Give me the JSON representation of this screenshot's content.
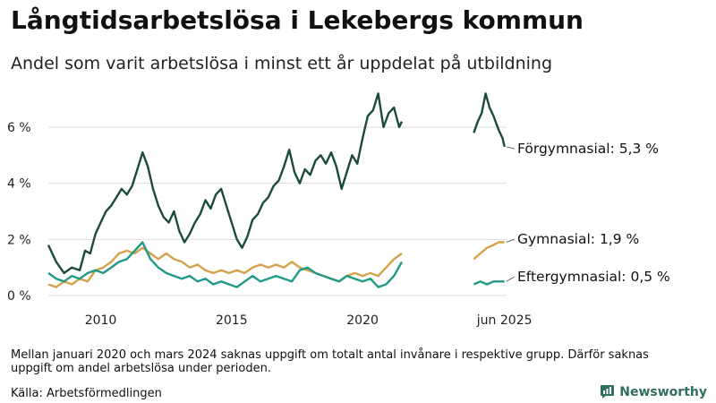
{
  "header": {
    "title": "Långtidsarbetslösa i Lekebergs kommun",
    "subtitle": "Andel som varit arbetslösa i minst ett år uppdelat på utbildning"
  },
  "footer": {
    "note": "Mellan januari 2020 och mars 2024 saknas uppgift om totalt antal invånare i respektive grupp. Därför saknas uppgift om andel arbetslösa under perioden.",
    "source": "Källa: Arbetsförmedlingen",
    "brand": "Newsworthy"
  },
  "colors": {
    "forgymnasial": "#1d4a3f",
    "gymnasial": "#d4a24a",
    "eftergymnasial": "#1e9a86",
    "grid": "#dddddd",
    "brand": "#2f6f5f"
  },
  "chart_data": {
    "type": "line",
    "xlim": [
      2008.0,
      2025.5
    ],
    "ylim": [
      0,
      7.5
    ],
    "y_ticks": [
      0,
      2,
      4,
      6
    ],
    "y_tick_labels": [
      "0 %",
      "2 %",
      "4 %",
      "6 %"
    ],
    "x_ticks": [
      2010,
      2015,
      2020,
      2025.42
    ],
    "x_tick_labels": [
      "2010",
      "2015",
      "2020",
      "jun 2025"
    ],
    "series": [
      {
        "name": "Förgymnasial",
        "label": "Förgymnasial: 5,3 %",
        "segments": [
          [
            [
              2008.0,
              1.8
            ],
            [
              2008.3,
              1.2
            ],
            [
              2008.6,
              0.8
            ],
            [
              2008.9,
              1.0
            ],
            [
              2009.2,
              0.9
            ],
            [
              2009.4,
              1.6
            ],
            [
              2009.6,
              1.5
            ],
            [
              2009.8,
              2.2
            ],
            [
              2010.0,
              2.6
            ],
            [
              2010.2,
              3.0
            ],
            [
              2010.4,
              3.2
            ],
            [
              2010.6,
              3.5
            ],
            [
              2010.8,
              3.8
            ],
            [
              2011.0,
              3.6
            ],
            [
              2011.2,
              3.9
            ],
            [
              2011.4,
              4.5
            ],
            [
              2011.6,
              5.1
            ],
            [
              2011.8,
              4.6
            ],
            [
              2012.0,
              3.8
            ],
            [
              2012.2,
              3.2
            ],
            [
              2012.4,
              2.8
            ],
            [
              2012.6,
              2.6
            ],
            [
              2012.8,
              3.0
            ],
            [
              2013.0,
              2.3
            ],
            [
              2013.2,
              1.9
            ],
            [
              2013.4,
              2.2
            ],
            [
              2013.6,
              2.6
            ],
            [
              2013.8,
              2.9
            ],
            [
              2014.0,
              3.4
            ],
            [
              2014.2,
              3.1
            ],
            [
              2014.4,
              3.6
            ],
            [
              2014.6,
              3.8
            ],
            [
              2014.8,
              3.2
            ],
            [
              2015.0,
              2.6
            ],
            [
              2015.2,
              2.0
            ],
            [
              2015.4,
              1.7
            ],
            [
              2015.6,
              2.1
            ],
            [
              2015.8,
              2.7
            ],
            [
              2016.0,
              2.9
            ],
            [
              2016.2,
              3.3
            ],
            [
              2016.4,
              3.5
            ],
            [
              2016.6,
              3.9
            ],
            [
              2016.8,
              4.1
            ],
            [
              2017.0,
              4.6
            ],
            [
              2017.2,
              5.2
            ],
            [
              2017.4,
              4.4
            ],
            [
              2017.6,
              4.0
            ],
            [
              2017.8,
              4.5
            ],
            [
              2018.0,
              4.3
            ],
            [
              2018.2,
              4.8
            ],
            [
              2018.4,
              5.0
            ],
            [
              2018.6,
              4.7
            ],
            [
              2018.8,
              5.1
            ],
            [
              2019.0,
              4.6
            ],
            [
              2019.2,
              3.8
            ],
            [
              2019.4,
              4.4
            ],
            [
              2019.6,
              5.0
            ],
            [
              2019.8,
              4.7
            ],
            [
              2020.0,
              5.6
            ],
            [
              2020.2,
              6.4
            ],
            [
              2020.4,
              6.6
            ],
            [
              2020.6,
              7.2
            ],
            [
              2020.8,
              6.0
            ],
            [
              2021.0,
              6.5
            ],
            [
              2021.2,
              6.7
            ],
            [
              2021.4,
              6.0
            ],
            [
              2021.5,
              6.2
            ]
          ],
          [
            [
              2024.25,
              5.8
            ],
            [
              2024.4,
              6.2
            ],
            [
              2024.55,
              6.5
            ],
            [
              2024.7,
              7.2
            ],
            [
              2024.85,
              6.7
            ],
            [
              2025.0,
              6.4
            ],
            [
              2025.2,
              5.9
            ],
            [
              2025.35,
              5.6
            ],
            [
              2025.42,
              5.3
            ]
          ]
        ]
      },
      {
        "name": "Gymnasial",
        "label": "Gymnasial: 1,9 %",
        "segments": [
          [
            [
              2008.0,
              0.4
            ],
            [
              2008.3,
              0.3
            ],
            [
              2008.6,
              0.5
            ],
            [
              2008.9,
              0.4
            ],
            [
              2009.2,
              0.6
            ],
            [
              2009.5,
              0.5
            ],
            [
              2009.8,
              0.9
            ],
            [
              2010.1,
              1.0
            ],
            [
              2010.4,
              1.2
            ],
            [
              2010.7,
              1.5
            ],
            [
              2011.0,
              1.6
            ],
            [
              2011.3,
              1.5
            ],
            [
              2011.6,
              1.7
            ],
            [
              2011.9,
              1.5
            ],
            [
              2012.2,
              1.3
            ],
            [
              2012.5,
              1.5
            ],
            [
              2012.8,
              1.3
            ],
            [
              2013.1,
              1.2
            ],
            [
              2013.4,
              1.0
            ],
            [
              2013.7,
              1.1
            ],
            [
              2014.0,
              0.9
            ],
            [
              2014.3,
              0.8
            ],
            [
              2014.6,
              0.9
            ],
            [
              2014.9,
              0.8
            ],
            [
              2015.2,
              0.9
            ],
            [
              2015.5,
              0.8
            ],
            [
              2015.8,
              1.0
            ],
            [
              2016.1,
              1.1
            ],
            [
              2016.4,
              1.0
            ],
            [
              2016.7,
              1.1
            ],
            [
              2017.0,
              1.0
            ],
            [
              2017.3,
              1.2
            ],
            [
              2017.6,
              1.0
            ],
            [
              2017.9,
              0.9
            ],
            [
              2018.2,
              0.8
            ],
            [
              2018.5,
              0.7
            ],
            [
              2018.8,
              0.6
            ],
            [
              2019.1,
              0.5
            ],
            [
              2019.4,
              0.7
            ],
            [
              2019.7,
              0.8
            ],
            [
              2020.0,
              0.7
            ],
            [
              2020.3,
              0.8
            ],
            [
              2020.6,
              0.7
            ],
            [
              2020.9,
              1.0
            ],
            [
              2021.2,
              1.3
            ],
            [
              2021.5,
              1.5
            ]
          ],
          [
            [
              2024.25,
              1.3
            ],
            [
              2024.5,
              1.5
            ],
            [
              2024.75,
              1.7
            ],
            [
              2025.0,
              1.8
            ],
            [
              2025.2,
              1.9
            ],
            [
              2025.42,
              1.9
            ]
          ]
        ]
      },
      {
        "name": "Eftergymnasial",
        "label": "Eftergymnasial: 0,5 %",
        "segments": [
          [
            [
              2008.0,
              0.8
            ],
            [
              2008.3,
              0.6
            ],
            [
              2008.6,
              0.5
            ],
            [
              2008.9,
              0.7
            ],
            [
              2009.2,
              0.6
            ],
            [
              2009.5,
              0.8
            ],
            [
              2009.8,
              0.9
            ],
            [
              2010.1,
              0.8
            ],
            [
              2010.4,
              1.0
            ],
            [
              2010.7,
              1.2
            ],
            [
              2011.0,
              1.3
            ],
            [
              2011.3,
              1.6
            ],
            [
              2011.6,
              1.9
            ],
            [
              2011.9,
              1.3
            ],
            [
              2012.2,
              1.0
            ],
            [
              2012.5,
              0.8
            ],
            [
              2012.8,
              0.7
            ],
            [
              2013.1,
              0.6
            ],
            [
              2013.4,
              0.7
            ],
            [
              2013.7,
              0.5
            ],
            [
              2014.0,
              0.6
            ],
            [
              2014.3,
              0.4
            ],
            [
              2014.6,
              0.5
            ],
            [
              2014.9,
              0.4
            ],
            [
              2015.2,
              0.3
            ],
            [
              2015.5,
              0.5
            ],
            [
              2015.8,
              0.7
            ],
            [
              2016.1,
              0.5
            ],
            [
              2016.4,
              0.6
            ],
            [
              2016.7,
              0.7
            ],
            [
              2017.0,
              0.6
            ],
            [
              2017.3,
              0.5
            ],
            [
              2017.6,
              0.9
            ],
            [
              2017.9,
              1.0
            ],
            [
              2018.2,
              0.8
            ],
            [
              2018.5,
              0.7
            ],
            [
              2018.8,
              0.6
            ],
            [
              2019.1,
              0.5
            ],
            [
              2019.4,
              0.7
            ],
            [
              2019.7,
              0.6
            ],
            [
              2020.0,
              0.5
            ],
            [
              2020.3,
              0.6
            ],
            [
              2020.6,
              0.3
            ],
            [
              2020.9,
              0.4
            ],
            [
              2021.2,
              0.7
            ],
            [
              2021.5,
              1.2
            ]
          ],
          [
            [
              2024.25,
              0.4
            ],
            [
              2024.5,
              0.5
            ],
            [
              2024.75,
              0.4
            ],
            [
              2025.0,
              0.5
            ],
            [
              2025.2,
              0.5
            ],
            [
              2025.42,
              0.5
            ]
          ]
        ]
      }
    ]
  }
}
